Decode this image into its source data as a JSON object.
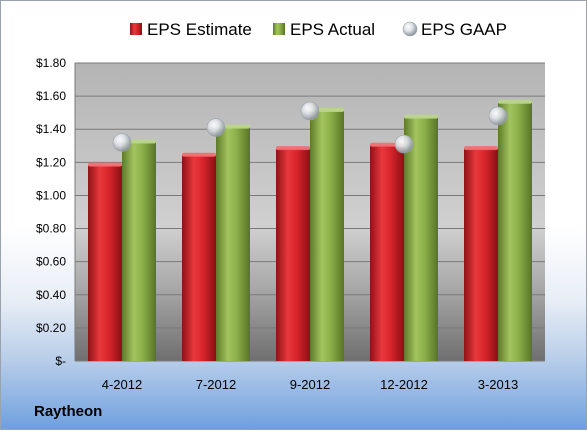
{
  "company": "Raytheon",
  "colors": {
    "estimate": "#d9252b",
    "actual": "#8cb04a",
    "gaap": "#c9ced5"
  },
  "chart_data": {
    "type": "bar",
    "categories": [
      "4-2012",
      "7-2012",
      "9-2012",
      "12-2012",
      "3-2013"
    ],
    "series": [
      {
        "name": "EPS Estimate",
        "kind": "bar",
        "values": [
          1.18,
          1.24,
          1.28,
          1.3,
          1.28
        ]
      },
      {
        "name": "EPS Actual",
        "kind": "bar",
        "values": [
          1.32,
          1.41,
          1.51,
          1.47,
          1.56
        ]
      },
      {
        "name": "EPS GAAP",
        "kind": "marker",
        "values": [
          1.32,
          1.41,
          1.51,
          1.31,
          1.48
        ]
      }
    ],
    "ylim": [
      0,
      1.8
    ],
    "yticks": [
      0,
      0.2,
      0.4,
      0.6,
      0.8,
      1.0,
      1.2,
      1.4,
      1.6,
      1.8
    ],
    "ytick_labels": [
      "$-",
      "$0.20",
      "$0.40",
      "$0.60",
      "$0.80",
      "$1.00",
      "$1.20",
      "$1.40",
      "$1.60",
      "$1.80"
    ],
    "legend": "top",
    "grid": true
  }
}
